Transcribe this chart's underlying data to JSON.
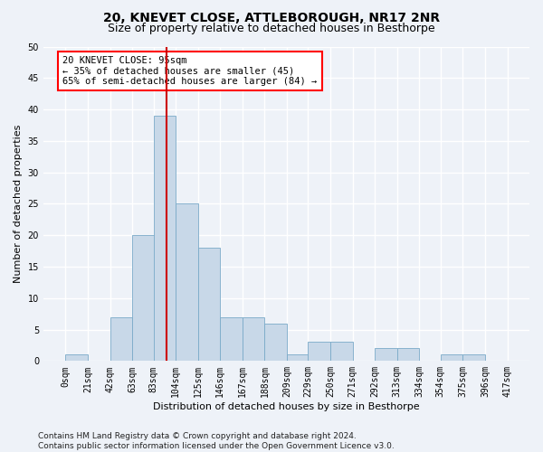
{
  "title": "20, KNEVET CLOSE, ATTLEBOROUGH, NR17 2NR",
  "subtitle": "Size of property relative to detached houses in Besthorpe",
  "xlabel": "Distribution of detached houses by size in Besthorpe",
  "ylabel": "Number of detached properties",
  "bar_color": "#c8d8e8",
  "bar_edge_color": "#7aaac8",
  "bins_left": [
    0,
    21,
    42,
    63,
    83,
    104,
    125,
    146,
    167,
    188,
    209,
    229,
    250,
    271,
    292,
    313,
    334,
    354,
    375,
    396
  ],
  "bin_width": 21,
  "bin_labels": [
    "0sqm",
    "21sqm",
    "42sqm",
    "63sqm",
    "83sqm",
    "104sqm",
    "125sqm",
    "146sqm",
    "167sqm",
    "188sqm",
    "209sqm",
    "229sqm",
    "250sqm",
    "271sqm",
    "292sqm",
    "313sqm",
    "334sqm",
    "354sqm",
    "375sqm",
    "396sqm",
    "417sqm"
  ],
  "bar_heights": [
    1,
    0,
    7,
    20,
    39,
    25,
    18,
    7,
    7,
    6,
    1,
    3,
    3,
    0,
    2,
    2,
    0,
    1,
    1,
    0
  ],
  "ylim": [
    0,
    50
  ],
  "yticks": [
    0,
    5,
    10,
    15,
    20,
    25,
    30,
    35,
    40,
    45,
    50
  ],
  "vline_x": 95,
  "vline_color": "#cc0000",
  "annotation_line1": "20 KNEVET CLOSE: 95sqm",
  "annotation_line2": "← 35% of detached houses are smaller (45)",
  "annotation_line3": "65% of semi-detached houses are larger (84) →",
  "footer_text": "Contains HM Land Registry data © Crown copyright and database right 2024.\nContains public sector information licensed under the Open Government Licence v3.0.",
  "background_color": "#eef2f8",
  "plot_bg_color": "#eef2f8",
  "grid_color": "#ffffff",
  "title_fontsize": 10,
  "subtitle_fontsize": 9,
  "axis_label_fontsize": 8,
  "tick_fontsize": 7,
  "footer_fontsize": 6.5
}
